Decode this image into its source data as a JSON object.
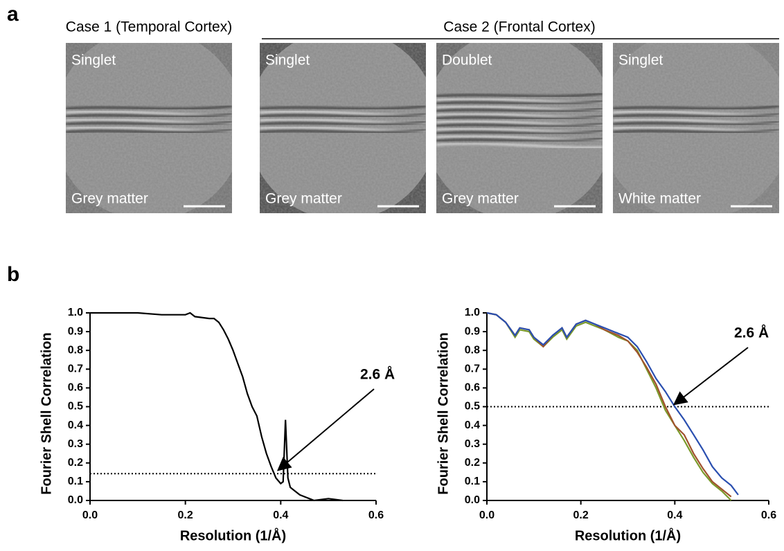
{
  "panel_labels": [
    "a",
    "b"
  ],
  "panel_a": {
    "groups": [
      "Case 1 (Temporal Cortex)",
      "Case 2 (Frontal Cortex)"
    ],
    "images": [
      {
        "kind": "Singlet",
        "region": "Grey matter"
      },
      {
        "kind": "Singlet",
        "region": "Grey matter"
      },
      {
        "kind": "Doublet",
        "region": "Grey matter"
      },
      {
        "kind": "Singlet",
        "region": "White matter"
      }
    ]
  },
  "chart_data": [
    {
      "type": "line",
      "xlabel": "Resolution (1/Å)",
      "ylabel": "Fourier Shell Correlation",
      "annotation": "2.6 Å",
      "threshold": 0.143,
      "xlim": [
        0,
        0.6
      ],
      "ylim": [
        0,
        1
      ],
      "xticks": [
        {
          "value": 0,
          "label": "0.0"
        },
        0.2,
        0.4,
        0.6
      ],
      "yticks": [
        {
          "value": 0,
          "label": "0.0"
        },
        0.1,
        0.2,
        0.3,
        0.4,
        0.5,
        0.6,
        0.7,
        0.8,
        0.9,
        {
          "value": 1,
          "label": "1.0"
        }
      ],
      "series": [
        {
          "color": "#000000",
          "x": [
            0,
            0.05,
            0.1,
            0.15,
            0.2,
            0.21,
            0.22,
            0.25,
            0.26,
            0.27,
            0.28,
            0.29,
            0.3,
            0.31,
            0.32,
            0.33,
            0.34,
            0.35,
            0.36,
            0.37,
            0.38,
            0.39,
            0.4,
            0.405,
            0.41,
            0.415,
            0.42,
            0.43,
            0.44,
            0.45,
            0.46,
            0.47,
            0.5,
            0.53
          ],
          "values": [
            1,
            1,
            1,
            0.99,
            0.99,
            1,
            0.98,
            0.97,
            0.97,
            0.95,
            0.91,
            0.86,
            0.8,
            0.73,
            0.66,
            0.57,
            0.5,
            0.45,
            0.34,
            0.25,
            0.18,
            0.12,
            0.09,
            0.1,
            0.43,
            0.12,
            0.07,
            0.05,
            0.03,
            0.02,
            0.01,
            0,
            0.01,
            0
          ]
        }
      ]
    },
    {
      "type": "line",
      "xlabel": "Resolution (1/Å)",
      "ylabel": "Fourier Shell Correlation",
      "annotation": "2.6 Å",
      "threshold": 0.5,
      "xlim": [
        0,
        0.6
      ],
      "ylim": [
        0,
        1
      ],
      "xticks": [
        {
          "value": 0,
          "label": "0.0"
        },
        0.2,
        0.4,
        0.6
      ],
      "yticks": [
        {
          "value": 0,
          "label": "0.0"
        },
        0.1,
        0.2,
        0.3,
        0.4,
        0.5,
        0.6,
        0.7,
        0.8,
        0.9,
        {
          "value": 1,
          "label": "1.0"
        }
      ],
      "series": [
        {
          "color": "#7a9a2a",
          "x": [
            0,
            0.02,
            0.04,
            0.06,
            0.07,
            0.09,
            0.1,
            0.12,
            0.14,
            0.16,
            0.17,
            0.19,
            0.21,
            0.23,
            0.25,
            0.28,
            0.3,
            0.32,
            0.34,
            0.36,
            0.38,
            0.4,
            0.42,
            0.44,
            0.46,
            0.48,
            0.5,
            0.52
          ],
          "values": [
            1,
            0.99,
            0.95,
            0.87,
            0.91,
            0.9,
            0.86,
            0.82,
            0.87,
            0.91,
            0.86,
            0.93,
            0.95,
            0.93,
            0.91,
            0.87,
            0.85,
            0.8,
            0.7,
            0.6,
            0.48,
            0.4,
            0.32,
            0.23,
            0.15,
            0.09,
            0.05,
            0
          ]
        },
        {
          "color": "#a0522d",
          "x": [
            0,
            0.02,
            0.04,
            0.06,
            0.07,
            0.09,
            0.1,
            0.12,
            0.14,
            0.16,
            0.17,
            0.19,
            0.21,
            0.23,
            0.25,
            0.28,
            0.3,
            0.32,
            0.34,
            0.36,
            0.38,
            0.4,
            0.42,
            0.44,
            0.46,
            0.48,
            0.5,
            0.52
          ],
          "values": [
            1,
            0.99,
            0.95,
            0.88,
            0.92,
            0.91,
            0.87,
            0.82,
            0.88,
            0.92,
            0.87,
            0.94,
            0.96,
            0.94,
            0.91,
            0.88,
            0.85,
            0.79,
            0.71,
            0.62,
            0.5,
            0.4,
            0.35,
            0.25,
            0.17,
            0.1,
            0.06,
            0.02
          ]
        },
        {
          "color": "#2a4fb0",
          "x": [
            0,
            0.02,
            0.04,
            0.06,
            0.07,
            0.09,
            0.1,
            0.12,
            0.14,
            0.16,
            0.17,
            0.19,
            0.21,
            0.23,
            0.25,
            0.28,
            0.3,
            0.32,
            0.34,
            0.36,
            0.38,
            0.4,
            0.42,
            0.44,
            0.46,
            0.48,
            0.5,
            0.52,
            0.535
          ],
          "values": [
            1,
            0.99,
            0.95,
            0.88,
            0.92,
            0.91,
            0.87,
            0.83,
            0.88,
            0.92,
            0.87,
            0.94,
            0.96,
            0.94,
            0.92,
            0.89,
            0.87,
            0.82,
            0.74,
            0.65,
            0.58,
            0.5,
            0.43,
            0.35,
            0.27,
            0.18,
            0.12,
            0.08,
            0.03
          ]
        }
      ]
    }
  ]
}
